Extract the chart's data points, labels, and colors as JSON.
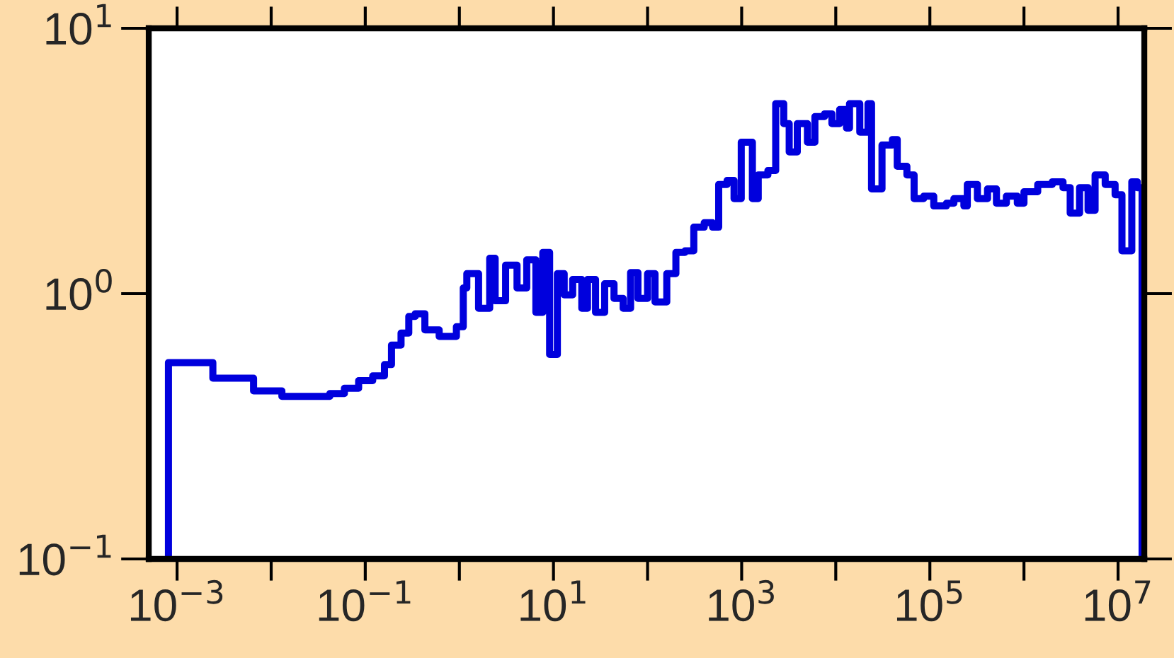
{
  "chart_data": {
    "type": "histogram",
    "bins": [
      0.00081,
      0.0024,
      0.0065,
      0.013,
      0.024,
      0.042,
      0.06,
      0.085,
      0.12,
      0.16,
      0.19,
      0.24,
      0.29,
      0.34,
      0.43,
      0.61,
      0.93,
      1.1,
      1.2,
      1.6,
      2.1,
      2.4,
      3.1,
      4.1,
      5.2,
      6.5,
      7.7,
      9.1,
      11,
      13,
      16,
      20,
      23,
      28,
      35,
      44,
      55,
      66,
      79,
      100,
      120,
      160,
      200,
      250,
      310,
      400,
      490,
      570,
      700,
      830,
      990,
      1300,
      1500,
      1900,
      2300,
      2800,
      3200,
      3900,
      5000,
      6000,
      7600,
      9100,
      11000,
      13000,
      14000,
      18000,
      22000,
      24000,
      31000,
      40000,
      45000,
      57000,
      68000,
      86000,
      110000,
      150000,
      180000,
      230000,
      250000,
      320000,
      410000,
      510000,
      650000,
      850000,
      1000000,
      1400000,
      2000000,
      2600000,
      3100000,
      3900000,
      4800000,
      5700000,
      7300000,
      9300000,
      11000000,
      14000000,
      16000000,
      18000000
    ],
    "values": [
      0.55,
      0.48,
      0.43,
      0.41,
      0.41,
      0.42,
      0.44,
      0.47,
      0.49,
      0.54,
      0.64,
      0.71,
      0.82,
      0.84,
      0.73,
      0.69,
      0.75,
      1.05,
      1.19,
      0.88,
      1.36,
      0.94,
      1.28,
      1.05,
      1.34,
      0.85,
      1.43,
      0.59,
      1.19,
      0.99,
      1.13,
      0.88,
      1.13,
      0.85,
      1.09,
      0.96,
      0.88,
      1.2,
      0.96,
      1.19,
      0.93,
      1.19,
      1.43,
      1.45,
      1.78,
      1.85,
      1.78,
      2.58,
      2.67,
      2.28,
      3.72,
      2.28,
      2.8,
      2.91,
      5.2,
      4.37,
      3.42,
      4.37,
      3.72,
      4.65,
      4.76,
      4.37,
      4.94,
      4.21,
      5.2,
      4.06,
      5.2,
      2.48,
      3.63,
      3.81,
      3.02,
      2.8,
      2.28,
      2.33,
      2.14,
      2.19,
      2.28,
      2.14,
      2.58,
      2.28,
      2.48,
      2.19,
      2.33,
      2.19,
      2.42,
      2.58,
      2.64,
      2.51,
      2.01,
      2.51,
      2.06,
      2.8,
      2.58,
      2.36,
      1.45,
      2.64,
      2.51
    ],
    "color": "#0000dd",
    "log": "xy",
    "grid": false,
    "xlim": [
      0.0005,
      19000000
    ],
    "ylim": [
      0.1,
      10
    ],
    "xticks": [
      {
        "value": 0.001,
        "label": "10$^{−3}$"
      },
      {
        "value": 0.01,
        "label": null
      },
      {
        "value": 0.1,
        "label": "10$^{−1}$"
      },
      {
        "value": 1,
        "label": null
      },
      {
        "value": 10,
        "label": "10$^{1}$"
      },
      {
        "value": 100,
        "label": null
      },
      {
        "value": 1000,
        "label": "10$^{3}$"
      },
      {
        "value": 10000,
        "label": null
      },
      {
        "value": 100000,
        "label": "10$^{5}$"
      },
      {
        "value": 1000000,
        "label": null
      },
      {
        "value": 10000000,
        "label": "10$^{7}$"
      }
    ],
    "yticks": [
      {
        "value": 0.1,
        "label": "10$^{−1}$"
      },
      {
        "value": 1,
        "label": "10$^{0}$"
      },
      {
        "value": 10,
        "label": "10$^{1}$"
      }
    ]
  }
}
